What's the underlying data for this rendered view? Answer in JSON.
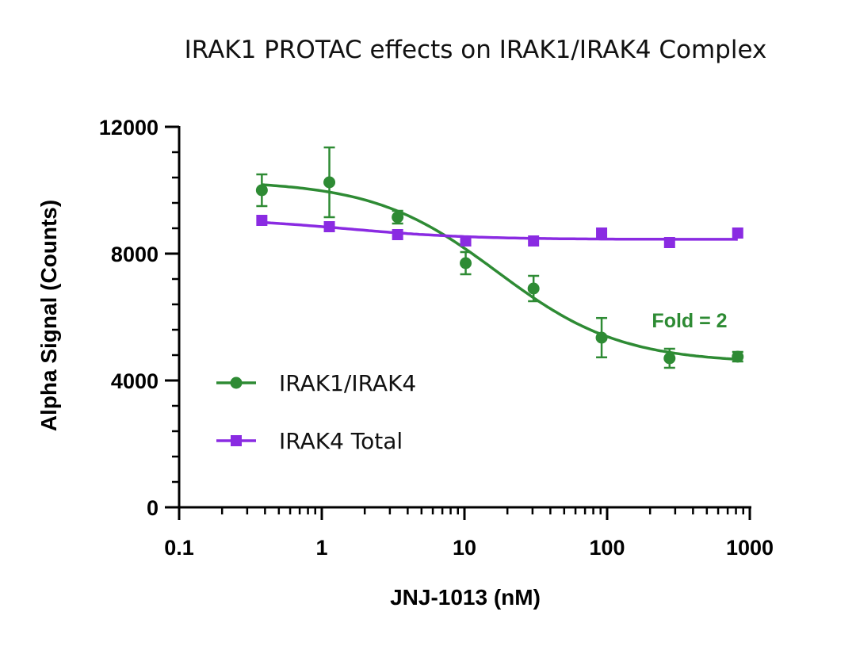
{
  "chart_data": {
    "type": "scatter",
    "title": "IRAK1 PROTAC effects on IRAK1/IRAK4 Complex",
    "xlabel": "JNJ-1013 (nM)",
    "ylabel": "Alpha Signal (Counts)",
    "xscale": "log",
    "xlim": [
      0.1,
      1000
    ],
    "ylim": [
      0,
      12000
    ],
    "x_ticks": [
      0.1,
      1,
      10,
      100,
      1000
    ],
    "x_tick_labels": [
      "0.1",
      "1",
      "10",
      "100",
      "1000"
    ],
    "y_ticks": [
      0,
      4000,
      8000,
      12000
    ],
    "y_tick_labels": [
      "0",
      "4000",
      "8000",
      "12000"
    ],
    "legend_position": "lower-left",
    "series": [
      {
        "name": "IRAK1/IRAK4",
        "color": "#2e8b34",
        "marker": "circle",
        "x": [
          0.38,
          1.13,
          3.4,
          10.2,
          30.5,
          91.5,
          274,
          823
        ],
        "y": [
          10000,
          10250,
          9150,
          7700,
          6900,
          5350,
          4700,
          4750
        ],
        "error": [
          500,
          1100,
          200,
          350,
          400,
          620,
          300,
          150
        ],
        "fit": {
          "top": 10300,
          "bottom": 4550,
          "ec50": 17,
          "hill": -1
        }
      },
      {
        "name": "IRAK4 Total",
        "color": "#8a2be2",
        "marker": "square",
        "x": [
          0.38,
          1.13,
          3.4,
          10.2,
          30.5,
          91.5,
          274,
          823
        ],
        "y": [
          9050,
          8850,
          8600,
          8400,
          8400,
          8650,
          8350,
          8650
        ],
        "error": [
          0,
          0,
          0,
          0,
          0,
          0,
          0,
          0
        ],
        "fit": {
          "top": 9120,
          "bottom": 8450,
          "ec50": 1.5,
          "hill": -1
        }
      }
    ],
    "annotations": [
      {
        "text": "Fold = 2",
        "color": "#2e8b34"
      }
    ]
  }
}
